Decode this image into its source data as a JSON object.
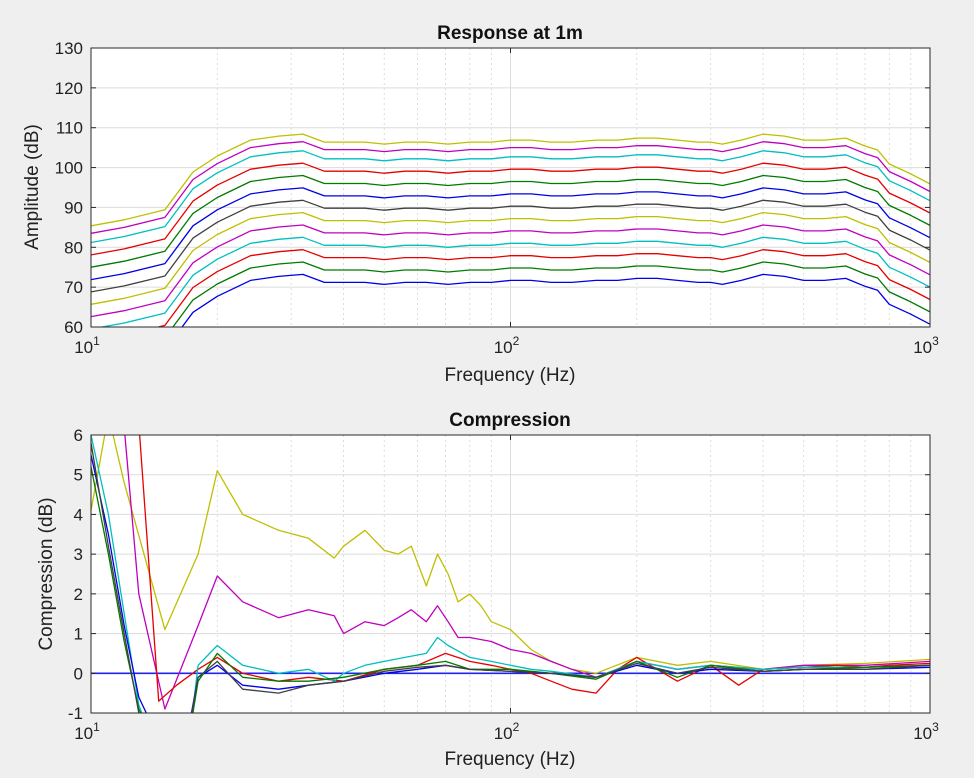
{
  "chart_data": [
    {
      "type": "line",
      "title": "Response at 1m",
      "xlabel": "Frequency (Hz)",
      "ylabel": "Amplitude (dB)",
      "xscale": "log",
      "xlim": [
        10,
        1000
      ],
      "ylim": [
        60,
        130
      ],
      "yticks": [
        "60",
        "70",
        "80",
        "90",
        "100",
        "110",
        "120",
        "130"
      ],
      "xtick_base": "10",
      "xtick_exponents": [
        "1",
        "2",
        "3"
      ],
      "grid": true,
      "x": [
        10,
        12,
        15,
        17.5,
        20,
        24,
        28,
        32,
        36,
        40,
        45,
        50,
        56,
        63,
        71,
        80,
        90,
        100,
        112,
        125,
        140,
        160,
        180,
        200,
        224,
        250,
        280,
        300,
        320,
        355,
        400,
        450,
        500,
        560,
        630,
        700,
        750,
        800,
        900,
        1000
      ],
      "base_shape": [
        -31.5,
        -30,
        -27.5,
        -18,
        -14,
        -10,
        -9,
        -8.5,
        -10.5,
        -10.5,
        -10.5,
        -11,
        -10.5,
        -10.5,
        -11,
        -10.5,
        -10.5,
        -10,
        -10,
        -10.5,
        -10.5,
        -10,
        -10,
        -9.5,
        -9.5,
        -10,
        -10.5,
        -10.5,
        -11,
        -10,
        -8.5,
        -9,
        -10,
        -10,
        -9.5,
        -11.5,
        -12.5,
        -16,
        -18.5,
        -21
      ],
      "series": [
        {
          "color": "#0000e6",
          "offset": 81.7
        },
        {
          "color": "#007a00",
          "offset": 84.8
        },
        {
          "color": "#e60000",
          "offset": 87.9
        },
        {
          "color": "#00bfbf",
          "offset": 91.0
        },
        {
          "color": "#bf00bf",
          "offset": 94.1
        },
        {
          "color": "#bfbf00",
          "offset": 97.2
        },
        {
          "color": "#404040",
          "offset": 100.3
        },
        {
          "color": "#0000e6",
          "offset": 103.4
        },
        {
          "color": "#007a00",
          "offset": 106.5
        },
        {
          "color": "#e60000",
          "offset": 109.6
        },
        {
          "color": "#00bfbf",
          "offset": 112.7
        },
        {
          "color": "#bf00bf",
          "offset": 115.0
        },
        {
          "color": "#bfbf00",
          "offset": 116.9
        }
      ]
    },
    {
      "type": "line",
      "title": "Compression",
      "xlabel": "Frequency (Hz)",
      "ylabel": "Compression (dB)",
      "xscale": "log",
      "xlim": [
        10,
        1000
      ],
      "ylim": [
        -1,
        6
      ],
      "yticks": [
        "-1",
        "0",
        "1",
        "2",
        "3",
        "4",
        "5",
        "6"
      ],
      "xtick_base": "10",
      "xtick_exponents": [
        "1",
        "2",
        "3"
      ],
      "grid": true,
      "reference_line": {
        "y": 0,
        "color": "#2222ee"
      },
      "series": [
        {
          "color": "#bfbf00",
          "x": [
            10,
            11,
            12,
            15,
            18,
            20,
            23,
            28,
            33,
            38,
            40,
            45,
            50,
            54,
            58,
            63,
            67,
            71,
            75,
            80,
            85,
            90,
            100,
            112,
            125,
            140,
            160,
            200,
            250,
            300,
            400,
            500,
            700,
            1000
          ],
          "y": [
            4.1,
            6.5,
            4.8,
            1.1,
            3.0,
            5.1,
            4.0,
            3.6,
            3.4,
            2.9,
            3.2,
            3.6,
            3.1,
            3.0,
            3.2,
            2.2,
            3.0,
            2.5,
            1.8,
            2.0,
            1.7,
            1.3,
            1.1,
            0.6,
            0.3,
            0.1,
            0.0,
            0.4,
            0.2,
            0.3,
            0.1,
            0.2,
            0.25,
            0.35
          ]
        },
        {
          "color": "#bf00bf",
          "x": [
            10,
            11,
            12,
            13,
            15,
            18,
            20,
            23,
            28,
            33,
            38,
            40,
            45,
            50,
            54,
            58,
            63,
            67,
            71,
            75,
            80,
            90,
            100,
            112,
            125,
            140,
            160,
            200,
            250,
            300,
            400,
            500,
            700,
            1000
          ],
          "y": [
            6.0,
            6.5,
            6.2,
            2.0,
            -0.9,
            1.2,
            2.45,
            1.8,
            1.4,
            1.6,
            1.45,
            1.0,
            1.3,
            1.2,
            1.4,
            1.6,
            1.3,
            1.7,
            1.3,
            0.9,
            0.9,
            0.8,
            0.6,
            0.5,
            0.3,
            0.1,
            -0.1,
            0.3,
            0.1,
            0.2,
            0.1,
            0.2,
            0.2,
            0.3
          ]
        },
        {
          "color": "#e60000",
          "x": [
            10,
            12,
            13,
            14.5,
            16,
            18,
            20,
            23,
            28,
            33,
            40,
            50,
            60,
            70,
            80,
            90,
            100,
            112,
            125,
            140,
            160,
            180,
            200,
            250,
            300,
            350,
            400,
            500,
            600,
            700,
            800,
            1000
          ],
          "y": [
            6.4,
            6.4,
            6.3,
            -0.7,
            -0.3,
            0.1,
            0.4,
            0.0,
            -0.2,
            -0.1,
            -0.2,
            0.1,
            0.2,
            0.5,
            0.3,
            0.2,
            0.1,
            0.0,
            -0.2,
            -0.4,
            -0.5,
            0.1,
            0.4,
            -0.2,
            0.2,
            -0.3,
            0.1,
            0.15,
            0.2,
            0.15,
            0.2,
            0.25
          ]
        },
        {
          "color": "#00bfbf",
          "x": [
            10,
            11,
            12,
            13,
            15,
            17,
            18,
            20,
            23,
            28,
            33,
            38,
            40,
            45,
            50,
            56,
            63,
            67,
            71,
            80,
            90,
            100,
            112,
            125,
            160,
            200,
            250,
            300,
            400,
            500,
            700,
            1000
          ],
          "y": [
            6.0,
            4.0,
            1.5,
            -0.8,
            -2.5,
            -2.0,
            0.2,
            0.7,
            0.2,
            0.0,
            0.1,
            -0.2,
            0.0,
            0.2,
            0.3,
            0.4,
            0.5,
            0.9,
            0.7,
            0.4,
            0.3,
            0.2,
            0.1,
            0.05,
            -0.1,
            0.3,
            0.1,
            0.2,
            0.1,
            0.15,
            0.15,
            0.2
          ]
        },
        {
          "color": "#0000e6",
          "x": [
            10,
            11,
            12,
            13,
            15,
            17,
            18,
            20,
            23,
            28,
            33,
            40,
            50,
            60,
            70,
            80,
            100,
            125,
            160,
            200,
            250,
            300,
            400,
            500,
            700,
            1000
          ],
          "y": [
            5.5,
            3.5,
            1.2,
            -0.6,
            -2.0,
            -1.5,
            -0.1,
            0.2,
            -0.3,
            -0.4,
            -0.3,
            -0.2,
            0.0,
            0.1,
            0.2,
            0.1,
            0.05,
            0.0,
            -0.1,
            0.2,
            0.0,
            0.1,
            0.05,
            0.1,
            0.1,
            0.15
          ]
        },
        {
          "color": "#007a00",
          "x": [
            10,
            11,
            12,
            13,
            15,
            17,
            18,
            20,
            23,
            28,
            33,
            40,
            50,
            60,
            70,
            80,
            100,
            125,
            160,
            200,
            250,
            300,
            400,
            500,
            700,
            1000
          ],
          "y": [
            5.2,
            3.0,
            0.8,
            -0.9,
            -2.3,
            -1.8,
            -0.2,
            0.5,
            -0.1,
            -0.2,
            -0.2,
            -0.1,
            0.1,
            0.2,
            0.3,
            0.1,
            0.1,
            0.0,
            -0.15,
            0.3,
            -0.1,
            0.2,
            0.05,
            0.1,
            0.15,
            0.2
          ]
        },
        {
          "color": "#404040",
          "x": [
            10,
            11,
            12,
            13,
            15,
            17,
            18,
            20,
            23,
            28,
            33,
            40,
            50,
            60,
            70,
            80,
            100,
            125,
            160,
            200,
            250,
            300,
            400,
            500,
            700,
            1000
          ],
          "y": [
            5.8,
            3.2,
            1.0,
            -1.0,
            -2.2,
            -1.6,
            -0.1,
            0.3,
            -0.4,
            -0.5,
            -0.3,
            -0.2,
            0.05,
            0.15,
            0.2,
            0.1,
            0.05,
            0.0,
            -0.1,
            0.25,
            0.0,
            0.15,
            0.05,
            0.1,
            0.1,
            0.2
          ]
        }
      ]
    }
  ]
}
